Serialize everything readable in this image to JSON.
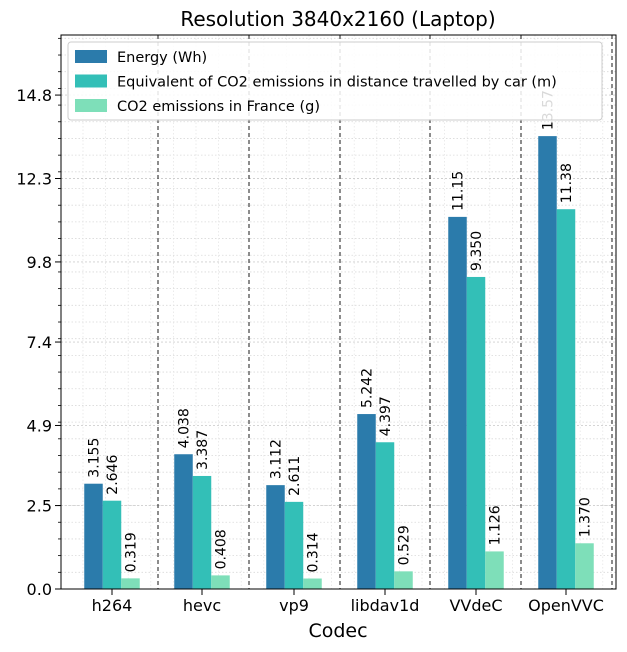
{
  "chart_data": {
    "type": "bar",
    "title": "Resolution 3840x2160 (Laptop)",
    "xlabel": "Codec",
    "ylabel": "",
    "categories": [
      "h264",
      "hevc",
      "vp9",
      "libdav1d",
      "VVdeC",
      "OpenVVC"
    ],
    "ylim": [
      0,
      16.6
    ],
    "yticks": [
      0.0,
      2.5,
      4.9,
      7.4,
      9.8,
      12.3,
      14.8
    ],
    "ytick_labels": [
      "0.0",
      "2.5",
      "4.9",
      "7.4",
      "9.8",
      "12.3",
      "14.8"
    ],
    "grid": true,
    "legend_position": "top-left",
    "series": [
      {
        "name": "Energy (Wh)",
        "color": "#2b7bab",
        "values": [
          3.155,
          4.038,
          3.112,
          5.242,
          11.15,
          13.57
        ],
        "labels": [
          "3.155",
          "4.038",
          "3.112",
          "5.242",
          "11.15",
          "13.57"
        ]
      },
      {
        "name": "Equivalent of CO2 emissions in distance travelled by car (m)",
        "color": "#33bfb7",
        "values": [
          2.646,
          3.387,
          2.611,
          4.397,
          9.35,
          11.38
        ],
        "labels": [
          "2.646",
          "3.387",
          "2.611",
          "4.397",
          "9.350",
          "11.38"
        ]
      },
      {
        "name": "CO2 emissions in France (g)",
        "color": "#7edfb9",
        "values": [
          0.319,
          0.408,
          0.314,
          0.529,
          1.126,
          1.37
        ],
        "labels": [
          "0.319",
          "0.408",
          "0.314",
          "0.529",
          "1.126",
          "1.370"
        ]
      }
    ]
  }
}
